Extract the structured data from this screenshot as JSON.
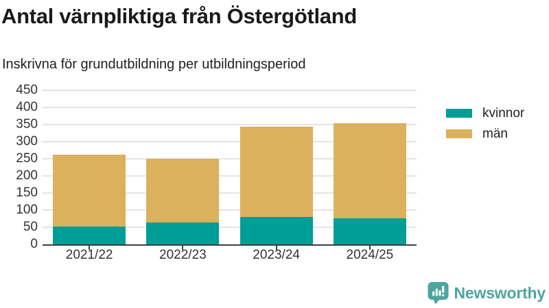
{
  "header": {
    "title": "Antal värnpliktiga från Östergötland",
    "subtitle": "Inskrivna för grundutbildning per utbildningsperiod"
  },
  "legend": {
    "items": [
      {
        "label": "kvinnor",
        "color": "#009E96"
      },
      {
        "label": "män",
        "color": "#DBB15D"
      }
    ]
  },
  "footer": {
    "brand": "Newsworthy",
    "brand_color": "#4BA69E",
    "icon": "newsworthy-bars-bubble-icon"
  },
  "chart_data": {
    "type": "bar",
    "stacked": true,
    "title": "Antal värnpliktiga från Östergötland",
    "subtitle": "Inskrivna för grundutbildning per utbildningsperiod",
    "categories": [
      "2021/22",
      "2022/23",
      "2023/24",
      "2024/25"
    ],
    "series": [
      {
        "name": "kvinnor",
        "color": "#009E96",
        "values": [
          53,
          64,
          80,
          77
        ]
      },
      {
        "name": "män",
        "color": "#DBB15D",
        "values": [
          209,
          186,
          265,
          277
        ]
      }
    ],
    "stack_totals": [
      262,
      250,
      345,
      354
    ],
    "xlabel": "",
    "ylabel": "",
    "ylim": [
      0,
      450
    ],
    "ytick_step": 50,
    "grid": true,
    "legend_position": "right",
    "colors": {
      "gridline": "#E4E4E4",
      "axis": "#3D3D3D",
      "tick_label": "#333333"
    }
  }
}
